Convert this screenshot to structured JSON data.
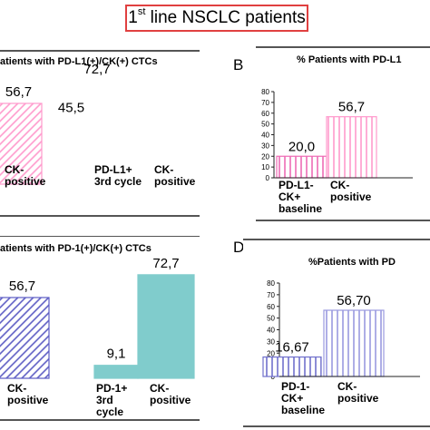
{
  "header": {
    "title_main": "1",
    "title_sup": "st",
    "title_rest": " line NSCLC patients"
  },
  "chart_data": [
    {
      "type": "bar",
      "panel": "",
      "title": "atients with PD-L1(+)/CK(+) CTCs",
      "categories": [
        "CK-\npositive",
        "PD-L1+\n3rd cycle",
        "CK-\npositive"
      ],
      "values": [
        56.7,
        45.5,
        72.7
      ],
      "value_labels": [
        "56,7",
        "45,5",
        "72,7"
      ],
      "colors": [
        "#ff99cc",
        "#ee6bb5",
        "#ee6bb5"
      ],
      "hatched": [
        true,
        false,
        false
      ],
      "ylim": [
        0,
        100
      ],
      "xlabel": "",
      "ylabel": ""
    },
    {
      "type": "bar",
      "panel": "B",
      "title": "% Patients with PD-L1",
      "categories": [
        "PD-L1-\nCK+\nbaseline",
        "CK-\npositive"
      ],
      "values": [
        20.0,
        56.7
      ],
      "value_labels": [
        "20,0",
        "56,7"
      ],
      "colors": [
        "#ee6bb5",
        "#ff99cc"
      ],
      "hatched": [
        true,
        true
      ],
      "yticks": [
        0,
        10,
        20,
        30,
        40,
        50,
        60,
        70,
        80
      ],
      "ylim": [
        0,
        80
      ],
      "xlabel": "",
      "ylabel": ""
    },
    {
      "type": "bar",
      "panel": "",
      "title": "atients with PD-1(+)/CK(+) CTCs",
      "categories": [
        "CK-\npositive",
        "PD-1+\n3rd\ncycle",
        "CK-\npositive"
      ],
      "values": [
        56.7,
        9.1,
        72.7
      ],
      "value_labels": [
        "56,7",
        "9,1",
        "72,7"
      ],
      "colors": [
        "#5c5cc4",
        "#80cccc",
        "#80cccc"
      ],
      "hatched": [
        true,
        false,
        false
      ],
      "ylim": [
        0,
        100
      ],
      "xlabel": "",
      "ylabel": ""
    },
    {
      "type": "bar",
      "panel": "D",
      "title": "%Patients with PD",
      "categories": [
        "PD-1-\nCK+\nbaseline",
        "CK-\npositive"
      ],
      "values": [
        16.67,
        56.7
      ],
      "value_labels": [
        "16,67",
        "56,70"
      ],
      "colors": [
        "#7070cc",
        "#9a9ae0"
      ],
      "hatched": [
        true,
        true
      ],
      "yticks": [
        0,
        10,
        20,
        30,
        40,
        50,
        60,
        70,
        80
      ],
      "ylim": [
        0,
        80
      ],
      "xlabel": "",
      "ylabel": ""
    }
  ]
}
